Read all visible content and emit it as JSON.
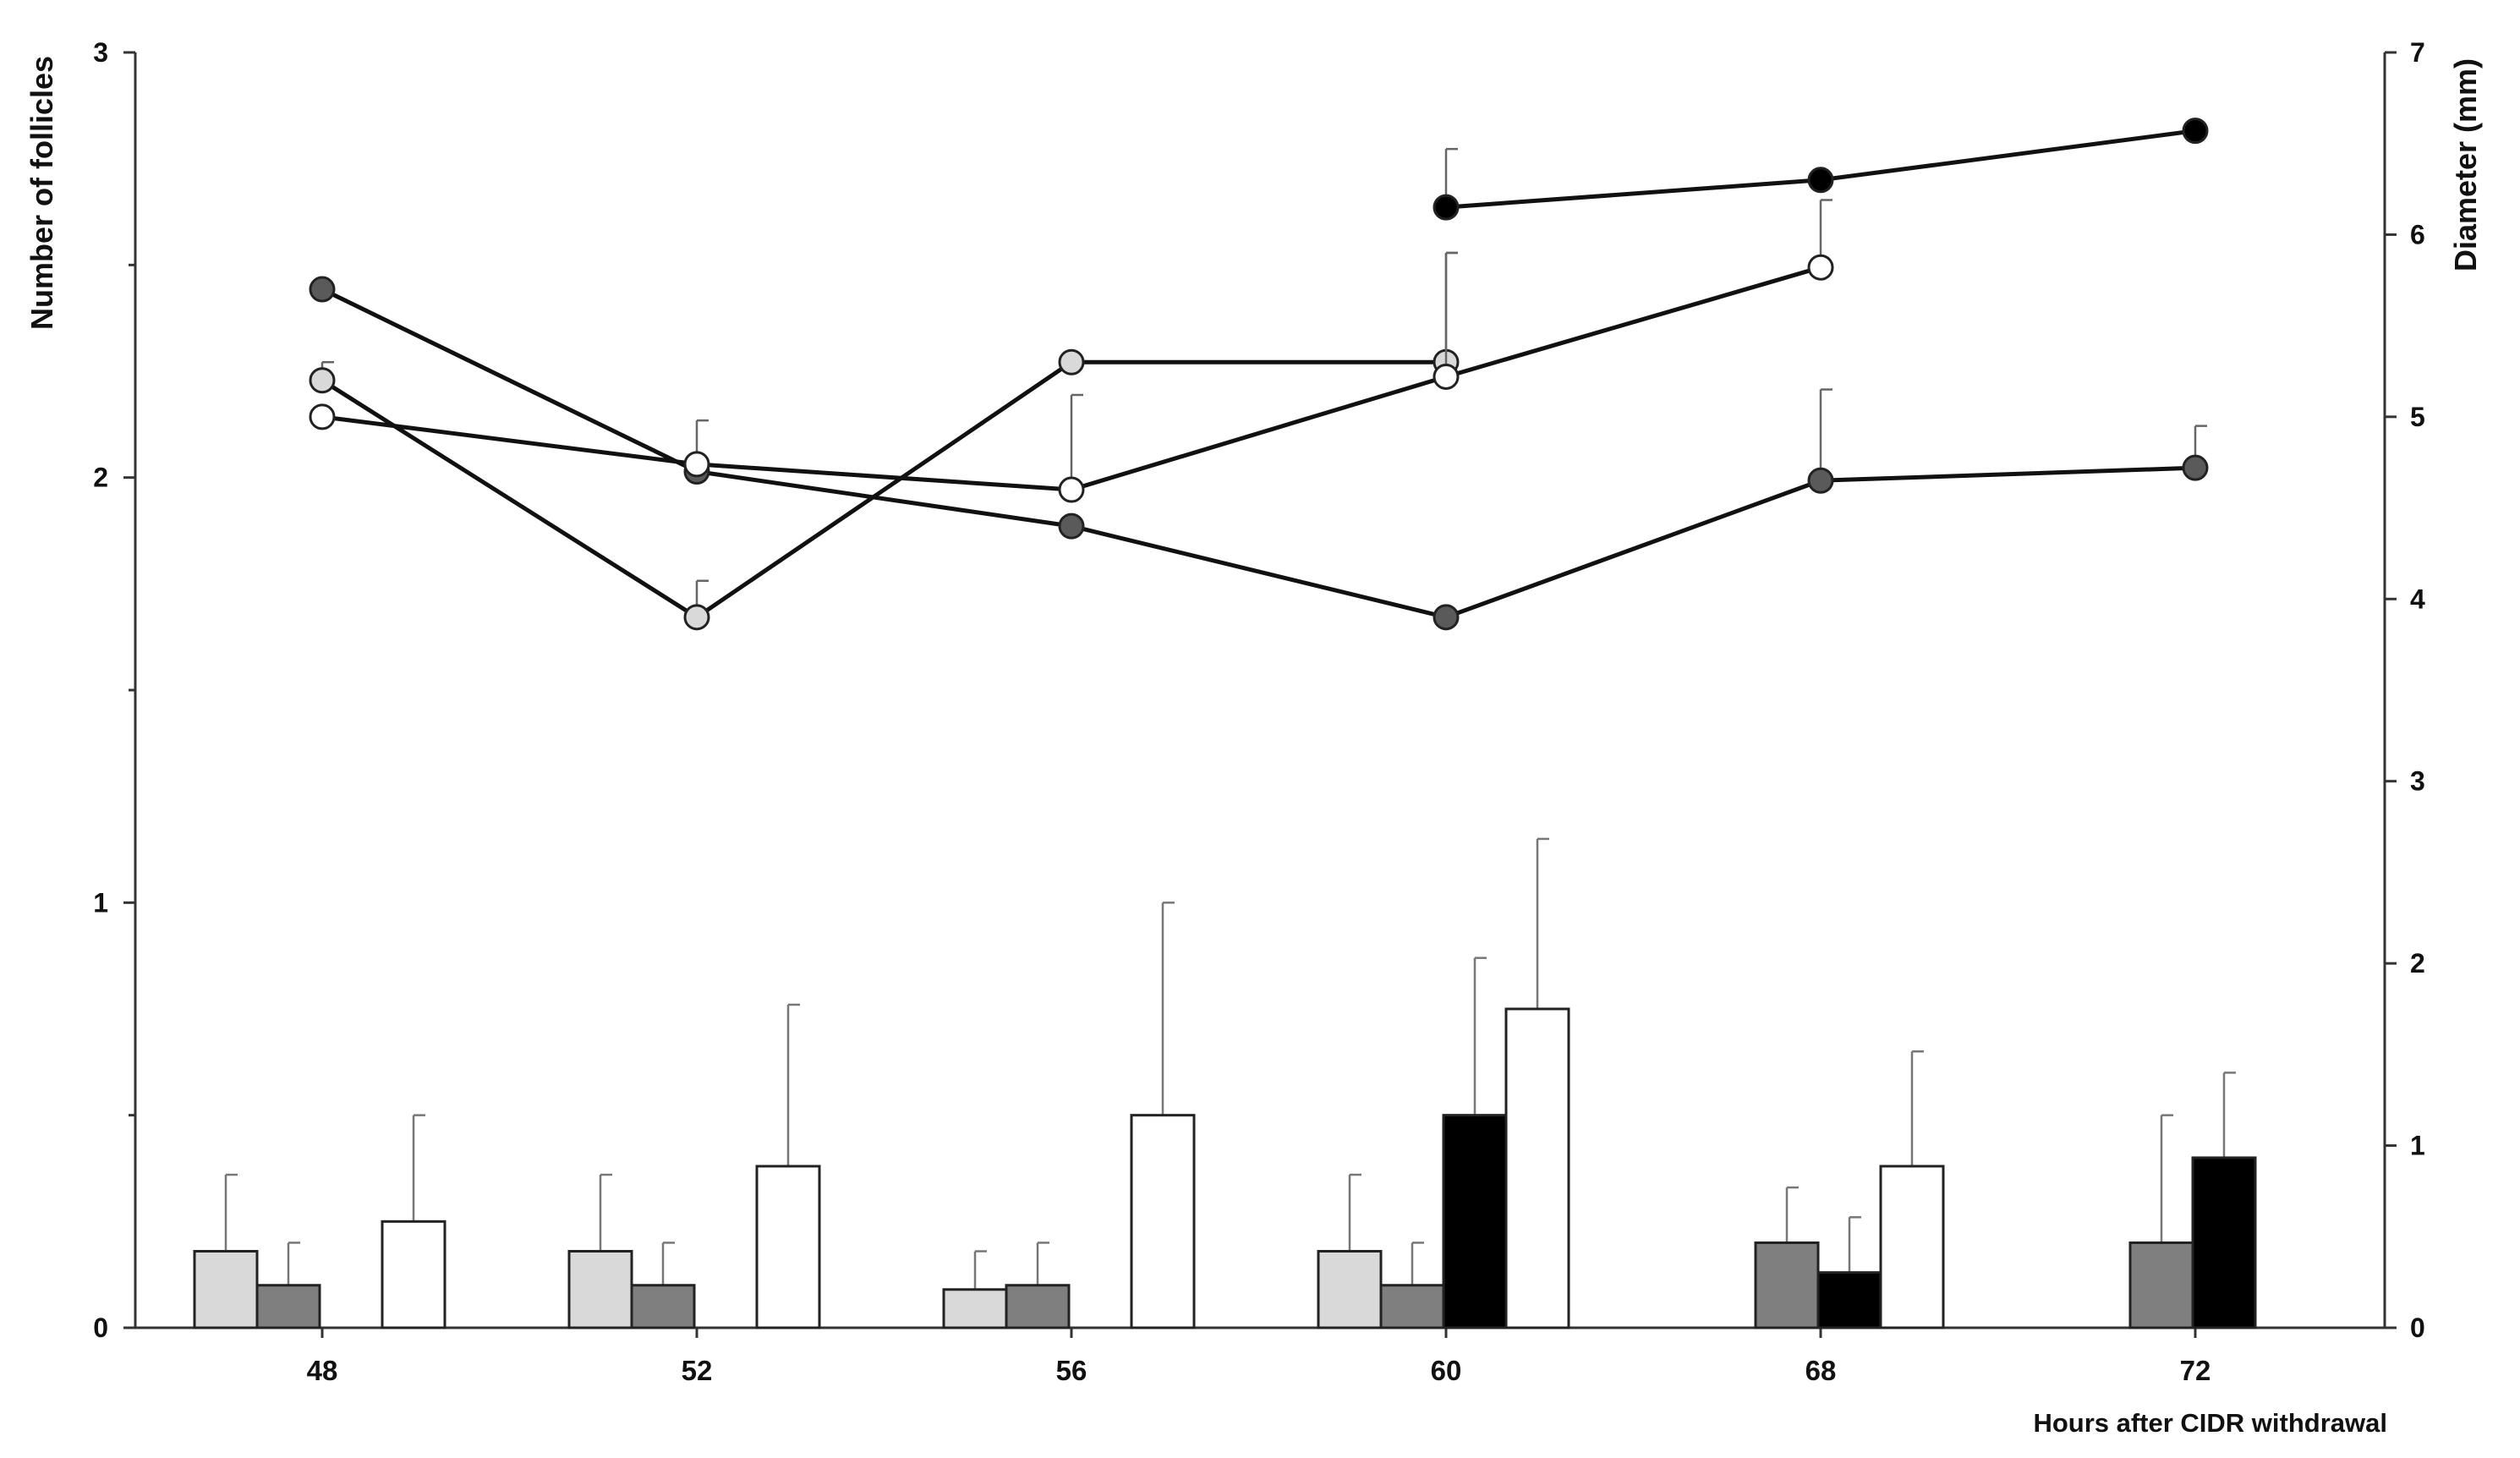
{
  "chart_data": {
    "type": "bar",
    "xlabel": "Hours after CIDR withdrawal",
    "ylabel": "Number of follicles",
    "y2label": "Diameter (mm)",
    "ylim": [
      0,
      3
    ],
    "y2lim": [
      0,
      7
    ],
    "yticks": [
      "0",
      "1",
      "2",
      "3"
    ],
    "y2ticks": [
      "0",
      "1",
      "2",
      "3",
      "4",
      "5",
      "6",
      "7"
    ],
    "categories": [
      "48",
      "52",
      "56",
      "60",
      "68",
      "72"
    ],
    "grid": false,
    "bar_series": [
      {
        "color": "#d9d9d9",
        "values": [
          0.18,
          0.18,
          0.09,
          0.18,
          null,
          null
        ],
        "errors": [
          0.18,
          0.18,
          0.09,
          0.18,
          null,
          null
        ]
      },
      {
        "color": "#7f7f7f",
        "values": [
          0.1,
          0.1,
          0.1,
          0.1,
          0.2,
          0.2
        ],
        "errors": [
          0.1,
          0.1,
          0.1,
          0.1,
          0.13,
          0.3
        ]
      },
      {
        "color": "#000000",
        "values": [
          null,
          null,
          null,
          0.5,
          0.13,
          0.4
        ],
        "errors": [
          null,
          null,
          null,
          0.37,
          0.13,
          0.2
        ]
      },
      {
        "color": "#ffffff",
        "values": [
          0.25,
          0.38,
          0.5,
          0.75,
          0.38,
          null
        ],
        "errors": [
          0.25,
          0.38,
          0.5,
          0.4,
          0.27,
          null
        ]
      }
    ],
    "line_series": [
      {
        "marker": "#5a5a5a",
        "values": [
          5.7,
          4.7,
          4.4,
          3.9,
          4.65,
          4.72
        ],
        "errors": [
          null,
          null,
          null,
          null,
          0.5,
          0.23
        ]
      },
      {
        "marker": "#d9d9d9",
        "values": [
          5.2,
          3.9,
          5.3,
          5.3,
          null,
          null
        ],
        "errors": [
          0.1,
          0.2,
          null,
          0.6,
          null,
          null
        ]
      },
      {
        "marker": "#ffffff",
        "values": [
          5.0,
          4.74,
          4.6,
          5.22,
          5.82,
          null
        ],
        "errors": [
          null,
          0.24,
          0.52,
          0.68,
          0.37,
          null
        ]
      },
      {
        "marker": "#000000",
        "values": [
          null,
          null,
          null,
          6.15,
          6.3,
          6.57
        ],
        "errors": [
          null,
          null,
          null,
          0.32,
          null,
          null
        ]
      }
    ]
  }
}
